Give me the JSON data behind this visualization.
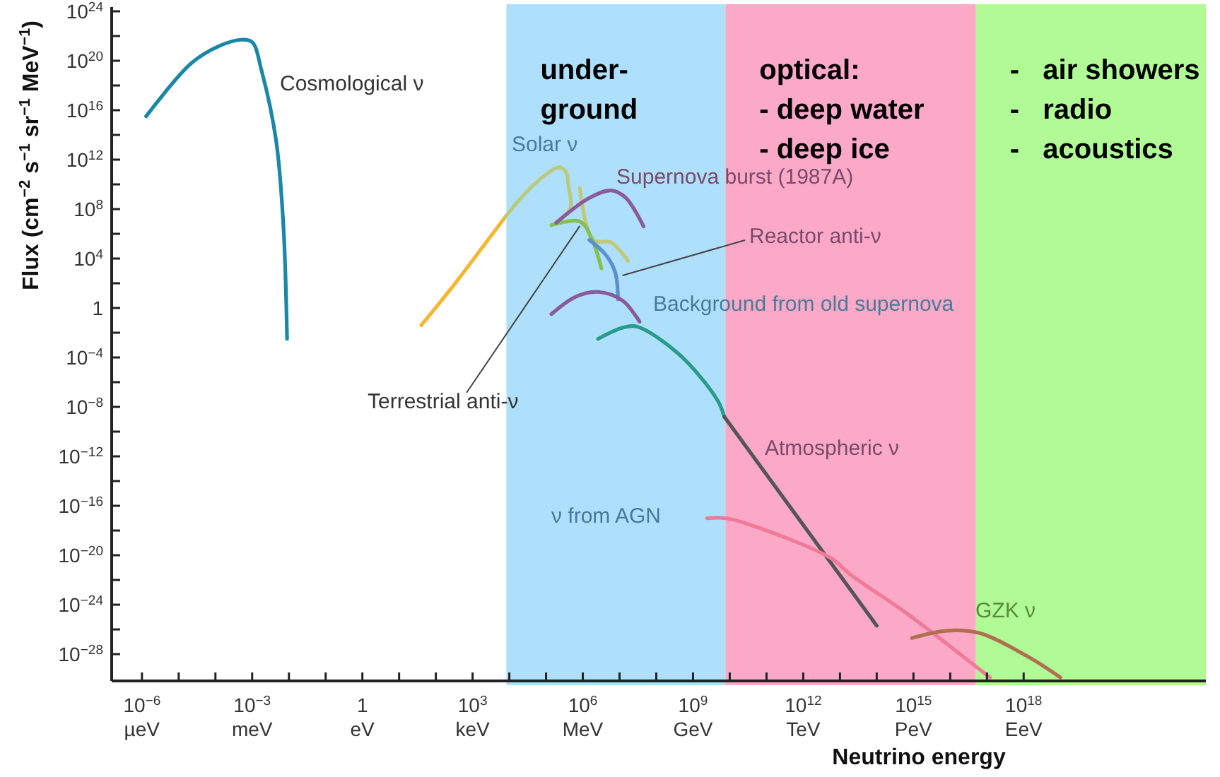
{
  "chart_data": {
    "type": "line",
    "log": "xy",
    "grid": false,
    "marker": "none",
    "line_style": "solid",
    "xlabel": "Neutrino energy",
    "ylabel": "Flux (cm$^{−2}$ s$^{−1}$ sr$^{−1}$ MeV$^{−1}$)",
    "xlim": [
      1.5e-07,
      9.1e+22
    ],
    "ylim": [
      6.8e-31,
      2.2e+24
    ],
    "xticks": [
      {
        "value": 1e-06,
        "label": "10$^{−6}$"
      },
      {
        "value": 1e-05,
        "label": null
      },
      {
        "value": 0.0001,
        "label": null
      },
      {
        "value": 0.001,
        "label": "10$^{−3}$"
      },
      {
        "value": 0.01,
        "label": null
      },
      {
        "value": 0.1,
        "label": null
      },
      1,
      {
        "value": 10,
        "label": null
      },
      {
        "value": 100,
        "label": null
      },
      {
        "value": 1000.0,
        "label": "10$^{3}$"
      },
      {
        "value": 10000.0,
        "label": null
      },
      {
        "value": 100000.0,
        "label": null
      },
      {
        "value": 1000000.0,
        "label": "10$^{6}$"
      },
      {
        "value": 10000000.0,
        "label": null
      },
      {
        "value": 100000000.0,
        "label": null
      },
      {
        "value": 1000000000.0,
        "label": "10$^{9}$"
      },
      {
        "value": 10000000000.0,
        "label": null
      },
      {
        "value": 100000000000.0,
        "label": null
      },
      {
        "value": 1000000000000.0,
        "label": "10$^{12}$"
      },
      {
        "value": 10000000000000.0,
        "label": null
      },
      {
        "value": 100000000000000.0,
        "label": null
      },
      {
        "value": 1000000000000000.0,
        "label": "10$^{15}$"
      },
      {
        "value": 1e+16,
        "label": null
      },
      {
        "value": 1e+17,
        "label": null
      },
      {
        "value": 1e+18,
        "label": "10$^{18}$"
      }
    ],
    "yticks": [
      {
        "value": 1e+24,
        "label": "10$^{24}$"
      },
      {
        "value": 1e+22,
        "label": null
      },
      {
        "value": 1e+20,
        "label": "10$^{20}$"
      },
      {
        "value": 1e+18,
        "label": null
      },
      {
        "value": 1e+16,
        "label": "10$^{16}$"
      },
      {
        "value": 100000000000000.0,
        "label": null
      },
      {
        "value": 1000000000000.0,
        "label": "10$^{12}$"
      },
      {
        "value": 10000000000.0,
        "label": null
      },
      {
        "value": 100000000.0,
        "label": "10$^{8}$"
      },
      {
        "value": 1000000.0,
        "label": null
      },
      {
        "value": 10000.0,
        "label": "10$^{4}$"
      },
      {
        "value": 100,
        "label": null
      },
      1,
      {
        "value": 0.01,
        "label": null
      },
      {
        "value": 0.0001,
        "label": "10$^{−4}$"
      },
      {
        "value": 1e-06,
        "label": null
      },
      {
        "value": 1e-08,
        "label": "10$^{−8}$"
      },
      {
        "value": 1e-10,
        "label": null
      },
      {
        "value": 1e-12,
        "label": "10$^{−12}$"
      },
      {
        "value": 1e-14,
        "label": null
      },
      {
        "value": 1e-16,
        "label": "10$^{−16}$"
      },
      {
        "value": 1e-18,
        "label": null
      },
      {
        "value": 1e-20,
        "label": "10$^{−20}$"
      },
      {
        "value": 1e-22,
        "label": null
      },
      {
        "value": 1e-24,
        "label": "10$^{−24}$"
      },
      {
        "value": 1e-26,
        "label": null
      },
      {
        "value": 1e-28,
        "label": "10$^{−28}$"
      }
    ],
    "bands": [
      {
        "axis": "x",
        "from": 8300.0,
        "to": 7600000000.0,
        "label": "under-\nground",
        "color": "#aee0fb"
      },
      {
        "axis": "x",
        "from": 7600000000.0,
        "to": 5e+16,
        "label": "optical:\n- deep water\n- deep ice",
        "color": "#fba9c6"
      },
      {
        "axis": "x",
        "from": 5e+16,
        "to": 9.1e+22,
        "label": "-   air showers\n-   radio\n-   acoustics",
        "color": "#b0fb96"
      }
    ],
    "series": [
      {
        "color": "#1a86a8",
        "x": [
          1.3e-06,
          2.2e-05,
          0.00013,
          0.0005,
          0.001,
          0.0018,
          0.0045,
          0.0071,
          0.0089
        ],
        "values": [
          3200000000000000.0,
          6.3e+19,
          1.6e+21,
          5e+21,
          3.2e+21,
          1.6e+19,
          32000000000000.0,
          4000000.0,
          0.0032
        ]
      },
      {
        "color": "#f5b731",
        "x": [
          40,
          250,
          1300,
          7900
        ],
        "values": [
          0.04,
          32,
          20000.0,
          25000000.0
        ]
      },
      {
        "color": "#b9c97d",
        "x": [
          7900,
          32000.0,
          100000.0,
          220000.0,
          350000.0,
          400000.0,
          450000.0,
          140000.0
        ],
        "values": [
          25000000.0,
          3200000000.0,
          63000000000.0,
          250000000000.0,
          100000000000.0,
          10000000000.0,
          100000000.0,
          5000000.0
        ]
      },
      {
        "color": "#c2c878",
        "x": [
          830000.0,
          1900000.0,
          5900000.0,
          17000000.0
        ],
        "values": [
          5000000000.0,
          320000.0,
          200000.0,
          6300.0
        ]
      },
      {
        "color": "#86bf52",
        "x": [
          140000.0,
          830000.0,
          1700000.0,
          3200000.0
        ],
        "values": [
          5000000.0,
          10000000.0,
          500000.0,
          1600.0
        ]
      },
      {
        "color": "#8a5a9a",
        "x": [
          190000.0,
          1500000.0,
          5900000.0,
          15000000.0,
          45000000.0
        ],
        "values": [
          7900000.0,
          790000000.0,
          3200000000.0,
          790000000.0,
          4000000.0
        ]
      },
      {
        "color": "#5b8fd0",
        "x": [
          1500000.0,
          4200000.0,
          7600000.0,
          9100000.0
        ],
        "values": [
          320000.0,
          20000.0,
          790,
          5
        ]
      },
      {
        "color": "#8a5a9a",
        "x": [
          140000.0,
          630000.0,
          2600000.0,
          12000000.0,
          35000000.0
        ],
        "values": [
          0.32,
          7.9,
          20,
          4,
          0.079
        ]
      },
      {
        "color": "#2a9a8a",
        "x": [
          2600000.0,
          12000000.0,
          29000000.0,
          400000000.0,
          4500000000.0,
          7100000000.0
        ],
        "values": [
          0.0032,
          0.025,
          0.032,
          0.0002,
          4e-08,
          1.6e-09
        ]
      },
      {
        "color": "#555555",
        "x": [
          7100000000.0,
          100000000000000.0
        ],
        "values": [
          1.6e-09,
          2e-26
        ]
      },
      {
        "color": "#f07a9a",
        "x": [
          2400000000.0,
          7600000000.0,
          26000000000.0,
          5400000000000.0,
          20000000000000.0,
          590000000000000.0,
          1.2e+17
        ],
        "values": [
          1e-17,
          1e-17,
          4e-18,
          6.3e-21,
          2.5e-22,
          2.5e-25,
          1.3e-30
        ]
      },
      {
        "color": "#b07050",
        "x": [
          910000000000000.0,
          8300000000000000.0,
          6.3e+16,
          1.3e+18,
          1e+19
        ],
        "values": [
          2e-27,
          7.9e-27,
          5e-27,
          6.3e-29,
          1.3e-30
        ]
      }
    ],
    "annotations": [
      "Cosmological ν",
      "Solar ν",
      "Supernova burst (1987A)",
      {
        "text": "Reactor anti-ν",
        "x": 12000000.0,
        "y": 430
      },
      "Background from old supernova",
      {
        "text": "Terrestrial anti-ν",
        "x": 830000.0,
        "y": 4300000.0
      },
      "Atmospheric ν",
      "ν from AGN",
      "GZK ν",
      "µeV",
      "meV",
      "eV",
      "keV",
      "MeV",
      "GeV",
      "TeV",
      "PeV",
      "EeV"
    ]
  }
}
